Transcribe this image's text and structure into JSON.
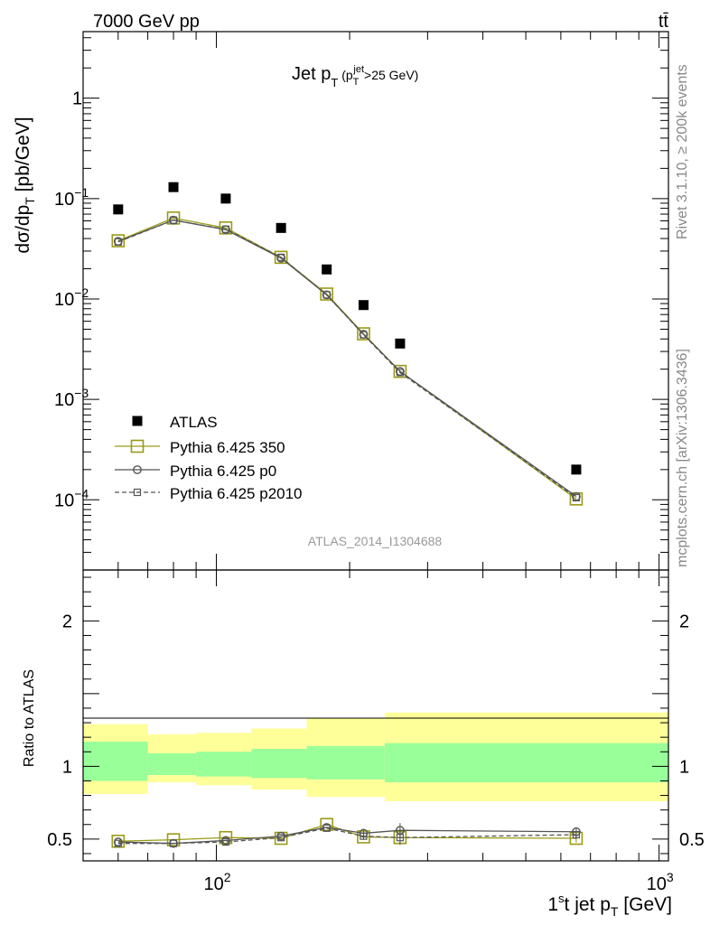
{
  "header": {
    "energy": "7000 GeV pp",
    "process": "tt̄"
  },
  "side_labels": {
    "rivet": "Rivet 3.1.10, ≥ 200k events",
    "mcplots": "mcplots.cern.ch [arXiv:1306.3436]"
  },
  "chart_data": [
    {
      "type": "scatter",
      "panel": "main",
      "title": "Jet p_T (p_T^jet>25 GeV)",
      "watermark": "ATLAS_2014_I1304688",
      "ylabel": "dσ/dp_T [pb/GeV]",
      "yscale": "log",
      "xscale": "log",
      "xlim": [
        50,
        1050
      ],
      "ylim": [
        2e-05,
        4.6
      ],
      "ytick_labels": [
        "1",
        "10^-1",
        "10^-2",
        "10^-3",
        "10^-4"
      ],
      "legend_position": "lower-left",
      "x": [
        60,
        80,
        105,
        140,
        177.5,
        215,
        260,
        650
      ],
      "series": [
        {
          "name": "ATLAS",
          "color": "#000000",
          "marker": "filled-square",
          "values": [
            0.078,
            0.13,
            0.1,
            0.051,
            0.0197,
            0.0087,
            0.0036,
            0.0002
          ]
        },
        {
          "name": "Pythia 6.425 350",
          "color": "#9a9a16",
          "marker": "open-square",
          "line": "solid",
          "values": [
            0.038,
            0.064,
            0.051,
            0.026,
            0.0112,
            0.0045,
            0.0019,
            0.000102
          ]
        },
        {
          "name": "Pythia 6.425 p0",
          "color": "#555555",
          "marker": "open-circle",
          "line": "solid",
          "values": [
            0.0375,
            0.061,
            0.049,
            0.0255,
            0.011,
            0.00445,
            0.0019,
            0.000108
          ]
        },
        {
          "name": "Pythia 6.425 p2010",
          "color": "#555555",
          "marker": "open-square-small",
          "line": "dashed",
          "values": [
            0.037,
            0.061,
            0.0495,
            0.026,
            0.011,
            0.0044,
            0.00185,
            0.000105
          ]
        }
      ]
    },
    {
      "type": "line",
      "panel": "ratio",
      "ylabel": "Ratio to ATLAS",
      "xlabel": "1st jet p_T [GeV]",
      "xscale": "log",
      "xlim": [
        50,
        1050
      ],
      "ylim": [
        0.35,
        2.35
      ],
      "ytick_labels": [
        "0.5",
        "1",
        "2"
      ],
      "xtick_labels": [
        "10^2",
        "10^3"
      ],
      "bands": {
        "edges": [
          50,
          70,
          90,
          120,
          160,
          240,
          1050
        ],
        "inner": [
          [
            0.9,
            1.17
          ],
          [
            0.94,
            1.09
          ],
          [
            0.93,
            1.1
          ],
          [
            0.92,
            1.12
          ],
          [
            0.91,
            1.14
          ],
          [
            0.89,
            1.16
          ]
        ],
        "outer": [
          [
            0.81,
            1.29
          ],
          [
            0.89,
            1.22
          ],
          [
            0.87,
            1.23
          ],
          [
            0.84,
            1.26
          ],
          [
            0.79,
            1.33
          ],
          [
            0.76,
            1.37
          ]
        ],
        "inner_color": "#99ff99",
        "outer_color": "#ffff99"
      },
      "x": [
        60,
        80,
        105,
        140,
        177.5,
        215,
        260,
        650
      ],
      "series": [
        {
          "name": "Pythia 6.425 350",
          "color": "#9a9a16",
          "marker": "open-square",
          "line": "solid",
          "values": [
            0.485,
            0.495,
            0.51,
            0.505,
            0.6,
            0.515,
            0.51,
            0.505
          ]
        },
        {
          "name": "Pythia 6.425 p0",
          "color": "#555555",
          "marker": "open-circle",
          "line": "solid",
          "values": [
            0.48,
            0.47,
            0.49,
            0.52,
            0.58,
            0.54,
            0.56,
            0.55
          ]
        },
        {
          "name": "Pythia 6.425 p2010",
          "color": "#555555",
          "marker": "open-square-small",
          "line": "dashed",
          "values": [
            0.47,
            0.47,
            0.48,
            0.51,
            0.575,
            0.52,
            0.51,
            0.53
          ]
        }
      ],
      "errors": [
        0,
        0,
        0,
        0,
        0,
        0.02,
        0.05,
        0.03
      ]
    }
  ]
}
